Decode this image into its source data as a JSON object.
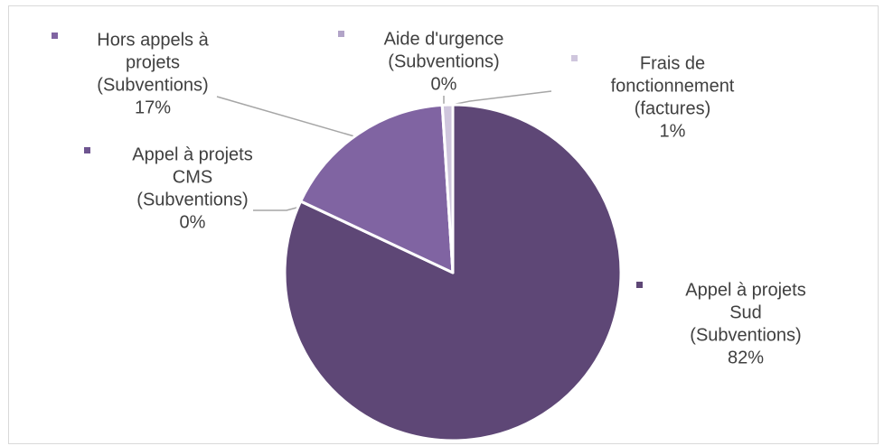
{
  "chart_data": {
    "type": "pie",
    "title": "",
    "start_angle_deg": 0,
    "direction": "clockwise",
    "slices": [
      {
        "lines": [
          "Appel à projets",
          "Sud",
          "(Subventions)"
        ],
        "pct_label": "82%",
        "value": 82,
        "color": "#5e4776"
      },
      {
        "lines": [
          "Appel à projets",
          "CMS",
          "(Subventions)"
        ],
        "pct_label": "0%",
        "value": 0.01,
        "color": "#6e5590"
      },
      {
        "lines": [
          "Hors appels à",
          "projets",
          "(Subventions)"
        ],
        "pct_label": "17%",
        "value": 17,
        "color": "#8064a2"
      },
      {
        "lines": [
          "Aide d'urgence",
          "(Subventions)"
        ],
        "pct_label": "0%",
        "value": 0.01,
        "color": "#b2a4c8"
      },
      {
        "lines": [
          "Frais de",
          "fonctionnement",
          "(factures)"
        ],
        "pct_label": "1%",
        "value": 1,
        "color": "#cfc6dd"
      }
    ]
  }
}
